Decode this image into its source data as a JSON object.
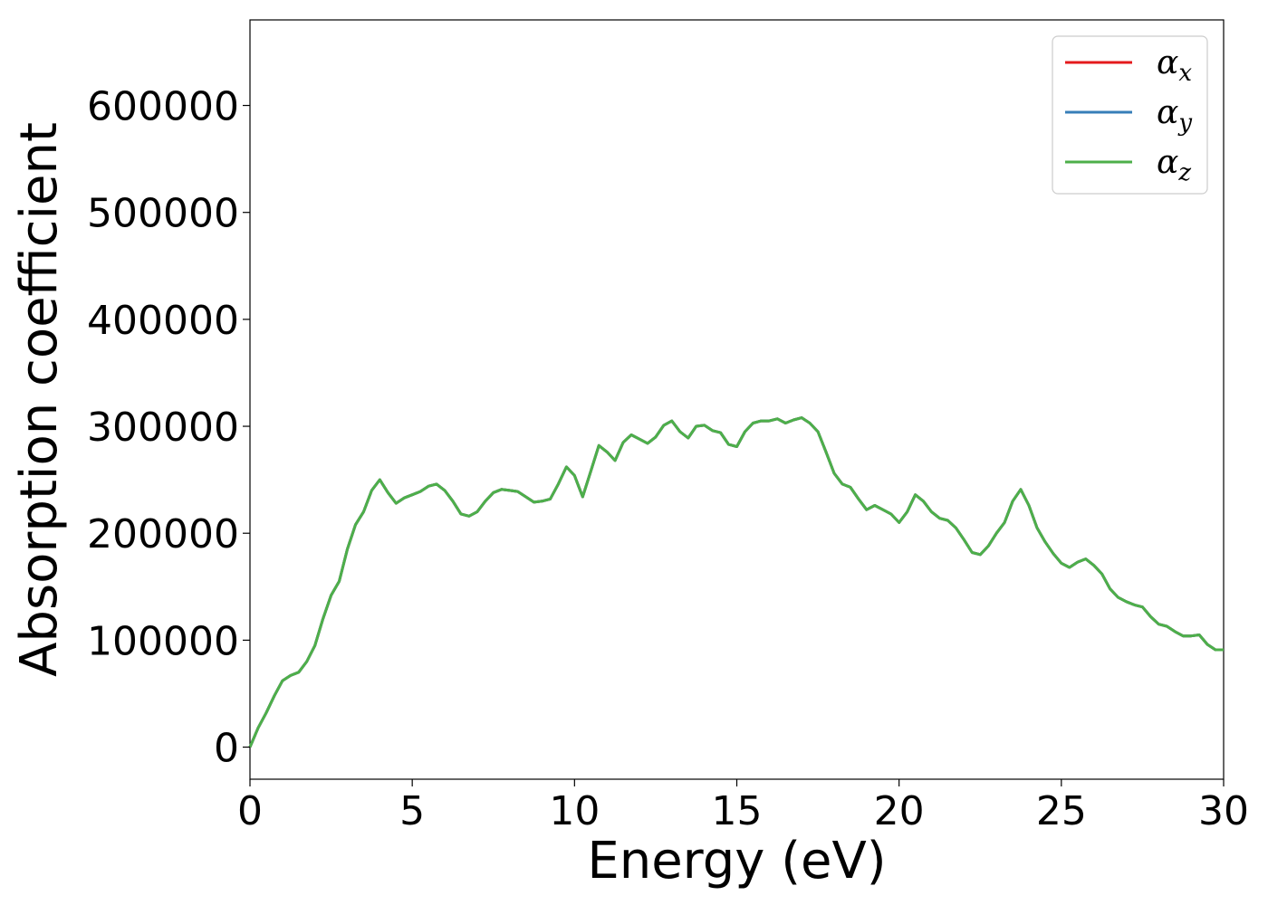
{
  "chart_data": {
    "type": "line",
    "title": "",
    "xlabel": "Energy (eV)",
    "ylabel": "Absorption coefficient",
    "xlim": [
      0,
      30
    ],
    "ylim": [
      -30000,
      680000
    ],
    "xticks": [
      0,
      5,
      10,
      15,
      20,
      25,
      30
    ],
    "xtick_labels": [
      "0",
      "5",
      "10",
      "15",
      "20",
      "25",
      "30"
    ],
    "yticks": [
      0,
      100000,
      200000,
      300000,
      400000,
      500000,
      600000
    ],
    "ytick_labels": [
      "0",
      "100000",
      "200000",
      "300000",
      "400000",
      "500000",
      "600000"
    ],
    "grid": false,
    "legend_position": "top-right",
    "x": [
      0,
      0.25,
      0.5,
      0.75,
      1.0,
      1.25,
      1.5,
      1.75,
      2.0,
      2.25,
      2.5,
      2.75,
      3.0,
      3.25,
      3.5,
      3.75,
      4.0,
      4.25,
      4.5,
      4.75,
      5.0,
      5.25,
      5.5,
      5.75,
      6.0,
      6.25,
      6.5,
      6.75,
      7.0,
      7.25,
      7.5,
      7.75,
      8.0,
      8.25,
      8.5,
      8.75,
      9.0,
      9.25,
      9.5,
      9.75,
      10.0,
      10.25,
      10.5,
      10.75,
      11.0,
      11.25,
      11.5,
      11.75,
      12.0,
      12.25,
      12.5,
      12.75,
      13.0,
      13.25,
      13.5,
      13.75,
      14.0,
      14.25,
      14.5,
      14.75,
      15.0,
      15.25,
      15.5,
      15.75,
      16.0,
      16.25,
      16.5,
      16.75,
      17.0,
      17.25,
      17.5,
      17.75,
      18.0,
      18.25,
      18.5,
      18.75,
      19.0,
      19.25,
      19.5,
      19.75,
      20.0,
      20.25,
      20.5,
      20.75,
      21.0,
      21.25,
      21.5,
      21.75,
      22.0,
      22.25,
      22.5,
      22.75,
      23.0,
      23.25,
      23.5,
      23.75,
      24.0,
      24.25,
      24.5,
      24.75,
      25.0,
      25.25,
      25.5,
      25.75,
      26.0,
      26.25,
      26.5,
      26.75,
      27.0,
      27.25,
      27.5,
      27.75,
      28.0,
      28.25,
      28.5,
      28.75,
      29.0,
      29.25,
      29.5,
      29.75,
      30.0
    ],
    "series": [
      {
        "name": "αx",
        "label": "α",
        "sub": "x",
        "color": "#e41a1c",
        "values": [
          0,
          18000,
          32000,
          48000,
          62000,
          67000,
          70000,
          80000,
          95000,
          120000,
          142000,
          155000,
          185000,
          208000,
          220000,
          240000,
          250000,
          238000,
          228000,
          233000,
          236000,
          239000,
          244000,
          246000,
          240000,
          230000,
          218000,
          216000,
          220000,
          230000,
          238000,
          241000,
          240000,
          239000,
          234000,
          229000,
          230000,
          232000,
          246000,
          262000,
          254000,
          234000,
          258000,
          282000,
          276000,
          268000,
          285000,
          292000,
          288000,
          284000,
          290000,
          301000,
          305000,
          295000,
          289000,
          300000,
          301000,
          296000,
          294000,
          283000,
          281000,
          295000,
          303000,
          305000,
          305000,
          307000,
          303000,
          306000,
          308000,
          303000,
          295000,
          276000,
          256000,
          246000,
          243000,
          232000,
          222000,
          226000,
          222000,
          218000,
          210000,
          220000,
          236000,
          230000,
          220000,
          214000,
          212000,
          205000,
          194000,
          182000,
          180000,
          188000,
          200000,
          210000,
          230000,
          241000,
          226000,
          205000,
          192000,
          181000,
          172000,
          168000,
          173000,
          176000,
          170000,
          162000,
          148000,
          140000,
          136000,
          133000,
          131000,
          122000,
          115000,
          113000,
          108000,
          104000,
          104000,
          105000,
          96000,
          91000,
          91000
        ]
      },
      {
        "name": "αy",
        "label": "α",
        "sub": "y",
        "color": "#377eb8",
        "values": [
          0,
          18000,
          32000,
          48000,
          62000,
          67000,
          70000,
          80000,
          95000,
          120000,
          142000,
          155000,
          185000,
          208000,
          220000,
          240000,
          250000,
          238000,
          228000,
          233000,
          236000,
          239000,
          244000,
          246000,
          240000,
          230000,
          218000,
          216000,
          220000,
          230000,
          238000,
          241000,
          240000,
          239000,
          234000,
          229000,
          230000,
          232000,
          246000,
          262000,
          254000,
          234000,
          258000,
          282000,
          276000,
          268000,
          285000,
          292000,
          288000,
          284000,
          290000,
          301000,
          305000,
          295000,
          289000,
          300000,
          301000,
          296000,
          294000,
          283000,
          281000,
          295000,
          303000,
          305000,
          305000,
          307000,
          303000,
          306000,
          308000,
          303000,
          295000,
          276000,
          256000,
          246000,
          243000,
          232000,
          222000,
          226000,
          222000,
          218000,
          210000,
          220000,
          236000,
          230000,
          220000,
          214000,
          212000,
          205000,
          194000,
          182000,
          180000,
          188000,
          200000,
          210000,
          230000,
          241000,
          226000,
          205000,
          192000,
          181000,
          172000,
          168000,
          173000,
          176000,
          170000,
          162000,
          148000,
          140000,
          136000,
          133000,
          131000,
          122000,
          115000,
          113000,
          108000,
          104000,
          104000,
          105000,
          96000,
          91000,
          91000
        ]
      },
      {
        "name": "αz",
        "label": "α",
        "sub": "z",
        "color": "#4daf4a",
        "values": [
          0,
          18000,
          32000,
          48000,
          62000,
          67000,
          70000,
          80000,
          95000,
          120000,
          142000,
          155000,
          185000,
          208000,
          220000,
          240000,
          250000,
          238000,
          228000,
          233000,
          236000,
          239000,
          244000,
          246000,
          240000,
          230000,
          218000,
          216000,
          220000,
          230000,
          238000,
          241000,
          240000,
          239000,
          234000,
          229000,
          230000,
          232000,
          246000,
          262000,
          254000,
          234000,
          258000,
          282000,
          276000,
          268000,
          285000,
          292000,
          288000,
          284000,
          290000,
          301000,
          305000,
          295000,
          289000,
          300000,
          301000,
          296000,
          294000,
          283000,
          281000,
          295000,
          303000,
          305000,
          305000,
          307000,
          303000,
          306000,
          308000,
          303000,
          295000,
          276000,
          256000,
          246000,
          243000,
          232000,
          222000,
          226000,
          222000,
          218000,
          210000,
          220000,
          236000,
          230000,
          220000,
          214000,
          212000,
          205000,
          194000,
          182000,
          180000,
          188000,
          200000,
          210000,
          230000,
          241000,
          226000,
          205000,
          192000,
          181000,
          172000,
          168000,
          173000,
          176000,
          170000,
          162000,
          148000,
          140000,
          136000,
          133000,
          131000,
          122000,
          115000,
          113000,
          108000,
          104000,
          104000,
          105000,
          96000,
          91000,
          91000
        ]
      }
    ]
  }
}
